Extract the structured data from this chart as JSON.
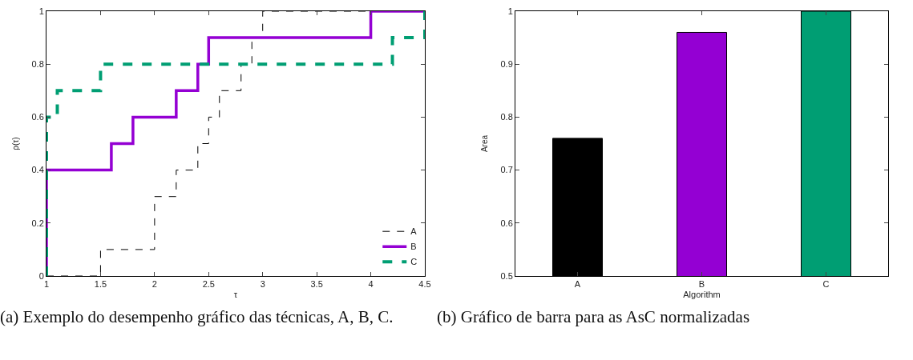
{
  "chart_data": [
    {
      "type": "step",
      "xlabel": "τ",
      "ylabel": "ρ(τ)",
      "xlim": [
        1,
        4.5
      ],
      "xticks": [
        1,
        1.5,
        2,
        2.5,
        3,
        3.5,
        4,
        4.5
      ],
      "ylim": [
        0,
        1
      ],
      "yticks": [
        0,
        0.2,
        0.4,
        0.6,
        0.8,
        1
      ],
      "legend": "bottom right",
      "series": [
        {
          "name": "A",
          "color": "#000000",
          "line_style": "dashed",
          "x": [
            1,
            1.5,
            2,
            2.2,
            2.4,
            2.5,
            2.6,
            2.8,
            2.9,
            3,
            4.5
          ],
          "values": [
            0,
            0.1,
            0.3,
            0.4,
            0.5,
            0.6,
            0.7,
            0.8,
            0.9,
            1,
            1
          ]
        },
        {
          "name": "B",
          "color": "#9400d3",
          "line_style": "solid",
          "x": [
            1,
            1,
            1.6,
            1.8,
            2.2,
            2.4,
            2.5,
            4,
            4.5
          ],
          "values": [
            0,
            0.4,
            0.5,
            0.6,
            0.7,
            0.8,
            0.9,
            1,
            1
          ]
        },
        {
          "name": "C",
          "color": "#009e73",
          "line_style": "dashed",
          "x": [
            1,
            1,
            1.1,
            1.5,
            4.2,
            4.5
          ],
          "values": [
            0,
            0.6,
            0.7,
            0.8,
            0.9,
            1
          ]
        }
      ],
      "annotations": [
        "(a) Exemplo do desempenho gráfico das técnicas, A, B, C."
      ]
    },
    {
      "type": "bar",
      "xlabel": "Algorithm",
      "ylabel": "Area",
      "categories": [
        "A",
        "B",
        "C"
      ],
      "values": [
        0.76,
        0.96,
        1
      ],
      "colors": [
        "#000000",
        "#9400d3",
        "#009e73"
      ],
      "ylim": [
        0.5,
        1
      ],
      "yticks": [
        0.5,
        0.6,
        0.7,
        0.8,
        0.9,
        1
      ],
      "annotations": [
        "(b) Gráfico de barra para as AsC normalizadas"
      ]
    }
  ]
}
